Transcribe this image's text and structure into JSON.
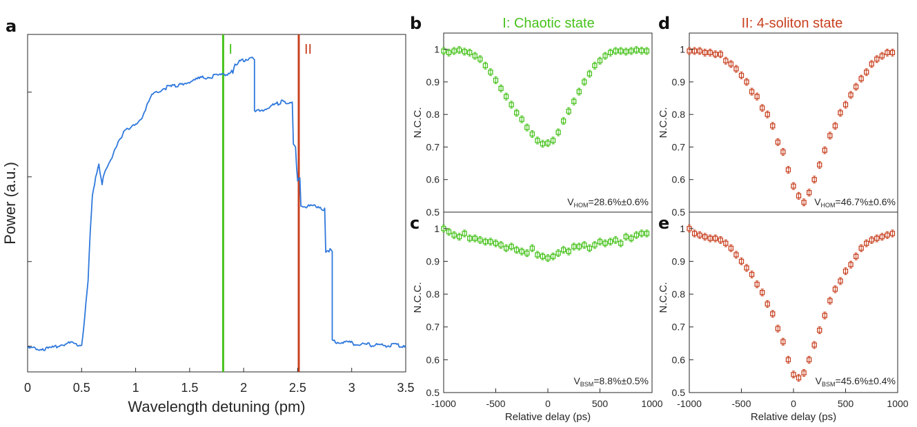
{
  "figure": {
    "panel_letters": [
      "a",
      "b",
      "c",
      "d",
      "e"
    ]
  },
  "colors": {
    "blue": "#2E78DC",
    "green": "#46C21B",
    "orange": "#C8401F",
    "axis": "#262626"
  },
  "chart_data": [
    {
      "id": "a",
      "type": "line",
      "title": "",
      "xlabel": "Wavelength detuning (pm)",
      "ylabel": "Power (a.u.)",
      "xlim": [
        0,
        3.5
      ],
      "ylim": [
        0,
        1
      ],
      "xticks": [
        0,
        0.5,
        1,
        1.5,
        2,
        2.5,
        3,
        3.5
      ],
      "xtick_labels": [
        "0",
        "0.5",
        "1",
        "1.5",
        "2",
        "2.5",
        "3",
        "3.5"
      ],
      "yticks": [
        0.076,
        0.327,
        0.578,
        0.829
      ],
      "markers": [
        {
          "x": 1.81,
          "label": "I",
          "color": "#46C21B"
        },
        {
          "x": 2.51,
          "label": "II",
          "color": "#C8401F"
        }
      ],
      "series": [
        {
          "name": "Power",
          "color": "#2E78DC",
          "x": [
            0.0,
            0.1,
            0.2,
            0.3,
            0.4,
            0.5,
            0.52,
            0.55,
            0.56,
            0.58,
            0.6,
            0.63,
            0.66,
            0.69,
            0.72,
            0.8,
            0.9,
            1.0,
            1.05,
            1.15,
            1.25,
            1.4,
            1.5,
            1.6,
            1.7,
            1.8,
            1.9,
            1.92,
            1.96,
            2.0,
            2.05,
            2.1,
            2.1,
            2.2,
            2.35,
            2.45,
            2.46,
            2.48,
            2.49,
            2.5,
            2.52,
            2.53,
            2.55,
            2.6,
            2.7,
            2.75,
            2.76,
            2.8,
            2.82,
            2.82,
            2.9,
            3.0,
            3.2,
            3.5
          ],
          "y": [
            0.07,
            0.07,
            0.068,
            0.08,
            0.085,
            0.08,
            0.13,
            0.24,
            0.27,
            0.42,
            0.52,
            0.58,
            0.61,
            0.56,
            0.6,
            0.65,
            0.72,
            0.73,
            0.75,
            0.82,
            0.84,
            0.85,
            0.86,
            0.87,
            0.875,
            0.88,
            0.89,
            0.91,
            0.92,
            0.925,
            0.928,
            0.928,
            0.77,
            0.78,
            0.8,
            0.8,
            0.67,
            0.67,
            0.6,
            0.57,
            0.57,
            0.49,
            0.49,
            0.49,
            0.49,
            0.48,
            0.36,
            0.36,
            0.36,
            0.09,
            0.09,
            0.085,
            0.08,
            0.078
          ]
        }
      ]
    },
    {
      "id": "b",
      "type": "scatter",
      "title": "I: Chaotic state",
      "xlabel": "",
      "ylabel": "N.C.C.",
      "xlim": [
        -1000,
        1000
      ],
      "ylim": [
        0.5,
        1.05
      ],
      "yticks": [
        0.5,
        0.6,
        0.7,
        0.8,
        0.9,
        1
      ],
      "ytick_labels": [
        "0.5",
        "0.6",
        "0.7",
        "0.8",
        "0.9",
        "1"
      ],
      "annotation": {
        "prefix": "V",
        "sub": "HOM",
        "value": "=28.6%±0.6%"
      },
      "series": [
        {
          "name": "I",
          "color": "#46C21B",
          "x": [
            -1000,
            -950,
            -900,
            -850,
            -800,
            -750,
            -700,
            -650,
            -600,
            -550,
            -500,
            -450,
            -400,
            -350,
            -300,
            -250,
            -200,
            -150,
            -100,
            -50,
            0,
            50,
            100,
            150,
            200,
            250,
            300,
            350,
            400,
            450,
            500,
            550,
            600,
            650,
            700,
            750,
            800,
            850,
            900,
            950
          ],
          "y": [
            0.995,
            0.99,
            0.995,
            0.998,
            0.993,
            0.99,
            0.98,
            0.97,
            0.95,
            0.93,
            0.905,
            0.88,
            0.855,
            0.83,
            0.805,
            0.785,
            0.76,
            0.74,
            0.72,
            0.71,
            0.712,
            0.72,
            0.745,
            0.78,
            0.81,
            0.84,
            0.87,
            0.9,
            0.925,
            0.95,
            0.965,
            0.98,
            0.99,
            0.995,
            0.995,
            0.993,
            0.995,
            0.998,
            0.996,
            0.995
          ]
        }
      ]
    },
    {
      "id": "c",
      "type": "scatter",
      "title": "",
      "xlabel": "Relative delay (ps)",
      "ylabel": "N.C.C.",
      "xlim": [
        -1000,
        1000
      ],
      "ylim": [
        0.5,
        1.05
      ],
      "xticks": [
        -1000,
        -500,
        0,
        500,
        1000
      ],
      "xtick_labels": [
        "-1000",
        "-500",
        "0",
        "500",
        "1000"
      ],
      "yticks": [
        0.5,
        0.6,
        0.7,
        0.8,
        0.9,
        1
      ],
      "ytick_labels": [
        "0.5",
        "0.6",
        "0.7",
        "0.8",
        "0.9",
        "1"
      ],
      "annotation": {
        "prefix": "V",
        "sub": "BSM",
        "value": "=8.8%±0.5%"
      },
      "series": [
        {
          "name": "I",
          "color": "#46C21B",
          "x": [
            -1000,
            -950,
            -900,
            -850,
            -800,
            -750,
            -700,
            -650,
            -600,
            -550,
            -500,
            -450,
            -400,
            -350,
            -300,
            -250,
            -200,
            -150,
            -100,
            -50,
            0,
            50,
            100,
            150,
            200,
            250,
            300,
            350,
            400,
            450,
            500,
            550,
            600,
            650,
            700,
            750,
            800,
            850,
            900,
            950
          ],
          "y": [
            1.0,
            0.99,
            0.98,
            0.975,
            0.985,
            0.97,
            0.97,
            0.965,
            0.96,
            0.96,
            0.955,
            0.95,
            0.94,
            0.945,
            0.935,
            0.93,
            0.925,
            0.94,
            0.92,
            0.915,
            0.91,
            0.915,
            0.925,
            0.935,
            0.93,
            0.945,
            0.945,
            0.95,
            0.94,
            0.95,
            0.96,
            0.955,
            0.96,
            0.965,
            0.955,
            0.975,
            0.97,
            0.98,
            0.985,
            0.985
          ]
        }
      ]
    },
    {
      "id": "d",
      "type": "scatter",
      "title": "II: 4-soliton state",
      "xlabel": "",
      "ylabel": "N.C.C.",
      "xlim": [
        -1000,
        1000
      ],
      "ylim": [
        0.5,
        1.05
      ],
      "yticks": [
        0.5,
        0.6,
        0.7,
        0.8,
        0.9,
        1
      ],
      "ytick_labels": [
        "0.5",
        "0.6",
        "0.7",
        "0.8",
        "0.9",
        "1"
      ],
      "annotation": {
        "prefix": "V",
        "sub": "HOM",
        "value": "=46.7%±0.6%"
      },
      "series": [
        {
          "name": "II",
          "color": "#C8401F",
          "x": [
            -1000,
            -950,
            -900,
            -850,
            -800,
            -750,
            -700,
            -650,
            -600,
            -550,
            -500,
            -450,
            -400,
            -350,
            -300,
            -250,
            -200,
            -150,
            -100,
            -50,
            0,
            50,
            100,
            150,
            200,
            250,
            300,
            350,
            400,
            450,
            500,
            550,
            600,
            650,
            700,
            750,
            800,
            850,
            900,
            950
          ],
          "y": [
            0.995,
            0.995,
            0.995,
            0.99,
            0.99,
            0.985,
            0.985,
            0.965,
            0.955,
            0.94,
            0.92,
            0.9,
            0.87,
            0.855,
            0.82,
            0.8,
            0.765,
            0.715,
            0.685,
            0.63,
            0.58,
            0.55,
            0.53,
            0.56,
            0.6,
            0.645,
            0.69,
            0.735,
            0.765,
            0.805,
            0.83,
            0.86,
            0.885,
            0.91,
            0.93,
            0.955,
            0.97,
            0.98,
            0.99,
            0.99
          ]
        }
      ]
    },
    {
      "id": "e",
      "type": "scatter",
      "title": "",
      "xlabel": "Relative delay (ps)",
      "ylabel": "N.C.C.",
      "xlim": [
        -1000,
        1000
      ],
      "ylim": [
        0.5,
        1.05
      ],
      "xticks": [
        -1000,
        -500,
        0,
        500,
        1000
      ],
      "xtick_labels": [
        "-1000",
        "-500",
        "0",
        "500",
        "1000"
      ],
      "yticks": [
        0.5,
        0.6,
        0.7,
        0.8,
        0.9,
        1
      ],
      "ytick_labels": [
        "0.5",
        "0.6",
        "0.7",
        "0.8",
        "0.9",
        "1"
      ],
      "annotation": {
        "prefix": "V",
        "sub": "BSM",
        "value": "=45.6%±0.4%"
      },
      "series": [
        {
          "name": "II",
          "color": "#C8401F",
          "x": [
            -1000,
            -950,
            -900,
            -850,
            -800,
            -750,
            -700,
            -650,
            -600,
            -550,
            -500,
            -450,
            -400,
            -350,
            -300,
            -250,
            -200,
            -150,
            -100,
            -50,
            0,
            50,
            100,
            150,
            200,
            250,
            300,
            350,
            400,
            450,
            500,
            550,
            600,
            650,
            700,
            750,
            800,
            850,
            900,
            950
          ],
          "y": [
            1.0,
            0.985,
            0.98,
            0.975,
            0.97,
            0.97,
            0.965,
            0.955,
            0.94,
            0.92,
            0.9,
            0.88,
            0.86,
            0.83,
            0.805,
            0.77,
            0.74,
            0.695,
            0.655,
            0.6,
            0.555,
            0.545,
            0.56,
            0.6,
            0.645,
            0.69,
            0.735,
            0.78,
            0.815,
            0.84,
            0.87,
            0.89,
            0.915,
            0.94,
            0.955,
            0.965,
            0.97,
            0.975,
            0.98,
            0.985
          ]
        }
      ]
    }
  ]
}
